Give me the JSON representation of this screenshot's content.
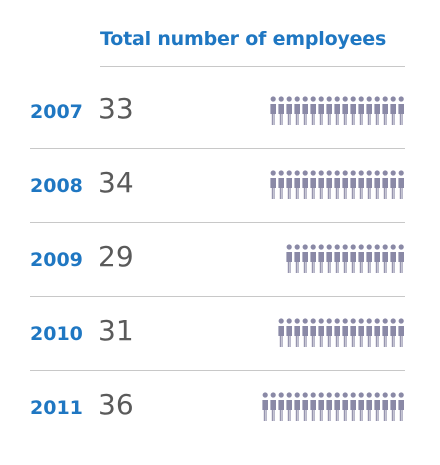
{
  "chart_data": {
    "type": "pictograph",
    "title": "Total number of employees",
    "categories": [
      "2007",
      "2008",
      "2009",
      "2010",
      "2011"
    ],
    "values": [
      33,
      34,
      29,
      31,
      36
    ],
    "value_labels": [
      "33",
      "34",
      "29",
      "31",
      "36"
    ],
    "icon": "person-icon",
    "icon_pair": "two persons per icon column",
    "colors": {
      "accent": "#1f77c2",
      "value_text": "#5a5a5a",
      "icon": "#8a89a6",
      "rule": "#c8c8c8"
    }
  }
}
